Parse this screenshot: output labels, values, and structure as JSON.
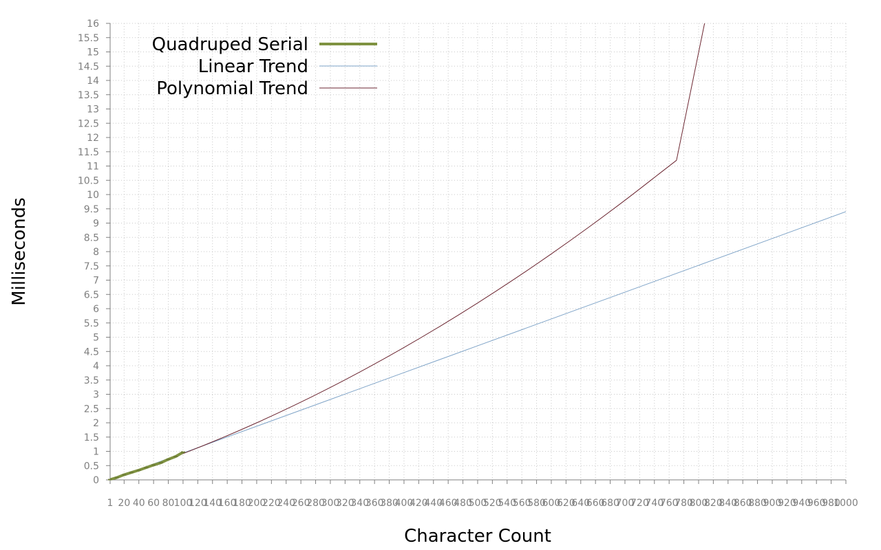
{
  "chart_data": {
    "type": "line",
    "title": "",
    "xlabel": "Character Count",
    "ylabel": "Milliseconds",
    "xlim": [
      1,
      1000
    ],
    "ylim": [
      0,
      16
    ],
    "grid": true,
    "legend_position": "top-left",
    "x_ticks": [
      "1",
      "20",
      "40",
      "60",
      "80",
      "100",
      "120",
      "140",
      "160",
      "180",
      "200",
      "220",
      "240",
      "260",
      "280",
      "300",
      "320",
      "340",
      "360",
      "380",
      "400",
      "420",
      "440",
      "460",
      "480",
      "500",
      "520",
      "540",
      "560",
      "580",
      "600",
      "620",
      "640",
      "660",
      "680",
      "700",
      "720",
      "740",
      "760",
      "780",
      "800",
      "820",
      "840",
      "860",
      "880",
      "900",
      "920",
      "940",
      "960",
      "980",
      "1000"
    ],
    "y_ticks": [
      "0",
      "0.5",
      "1",
      "1.5",
      "2",
      "2.5",
      "3",
      "3.5",
      "4",
      "4.5",
      "5",
      "5.5",
      "6",
      "6.5",
      "7",
      "7.5",
      "8",
      "8.5",
      "9",
      "9.5",
      "10",
      "10.5",
      "11",
      "11.5",
      "12",
      "12.5",
      "13",
      "13.5",
      "14",
      "14.5",
      "15",
      "15.5",
      "16"
    ],
    "series": [
      {
        "name": "Quadruped Serial",
        "color": "#7f9241",
        "style": "thick",
        "x": [
          1,
          10,
          20,
          30,
          40,
          50,
          60,
          70,
          80,
          90,
          100
        ],
        "y": [
          0.01,
          0.08,
          0.18,
          0.26,
          0.34,
          0.43,
          0.52,
          0.6,
          0.72,
          0.82,
          0.97
        ]
      },
      {
        "name": "Linear Trend",
        "color": "#7ea3c7",
        "style": "thin",
        "x": [
          1,
          100,
          200,
          300,
          400,
          500,
          600,
          700,
          800,
          900,
          1000
        ],
        "y": [
          0.0,
          0.94,
          1.88,
          2.82,
          3.76,
          4.7,
          5.64,
          6.58,
          7.52,
          8.46,
          9.4
        ]
      },
      {
        "name": "Polynomial Trend",
        "color": "#6b2530",
        "style": "thin",
        "x": [
          1,
          50,
          100,
          150,
          200,
          250,
          300,
          350,
          400,
          450,
          500,
          550,
          600,
          650,
          700,
          750,
          770
        ],
        "y": [
          0.0,
          0.44,
          0.92,
          1.44,
          2.0,
          2.6,
          3.24,
          3.92,
          4.64,
          5.4,
          6.2,
          7.04,
          7.92,
          8.84,
          9.8,
          10.8,
          11.2
        ]
      }
    ]
  }
}
